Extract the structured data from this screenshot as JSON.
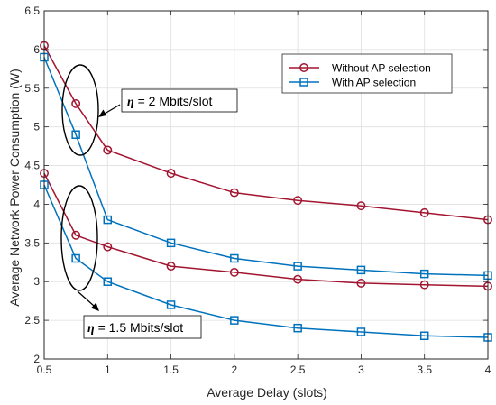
{
  "chart_data": {
    "type": "line",
    "xlabel": "Average Delay (slots)",
    "ylabel": "Average Network Power Consumption (W)",
    "xlim": [
      0.5,
      4
    ],
    "ylim": [
      2,
      6.5
    ],
    "xticks": [
      0.5,
      1,
      1.5,
      2,
      2.5,
      3,
      3.5,
      4
    ],
    "xtick_labels": [
      "0.5",
      "1",
      "1.5",
      "2",
      "2.5",
      "3",
      "3.5",
      "4"
    ],
    "yticks": [
      2,
      2.5,
      3,
      3.5,
      4,
      4.5,
      5,
      5.5,
      6,
      6.5
    ],
    "ytick_labels": [
      "2",
      "2.5",
      "3",
      "3.5",
      "4",
      "4.5",
      "5",
      "5.5",
      "6",
      "6.5"
    ],
    "grid": true,
    "legend_position": "top-right",
    "legend": [
      {
        "label": "Without AP selection",
        "color": "#A2142F",
        "marker": "circle"
      },
      {
        "label": "With AP selection",
        "color": "#0072BD",
        "marker": "square"
      }
    ],
    "series": [
      {
        "group": "eta2",
        "legend_index": 0,
        "color": "#A2142F",
        "marker": "circle",
        "x": [
          0.5,
          0.75,
          1,
          1.5,
          2,
          2.5,
          3,
          3.5,
          4
        ],
        "y": [
          6.05,
          5.3,
          4.7,
          4.4,
          4.15,
          4.05,
          3.98,
          3.89,
          3.8
        ]
      },
      {
        "group": "eta2",
        "legend_index": 1,
        "color": "#0072BD",
        "marker": "square",
        "x": [
          0.5,
          0.75,
          1,
          1.5,
          2,
          2.5,
          3,
          3.5,
          4
        ],
        "y": [
          5.9,
          4.9,
          3.8,
          3.5,
          3.3,
          3.2,
          3.15,
          3.1,
          3.08
        ]
      },
      {
        "group": "eta1.5",
        "legend_index": 0,
        "color": "#A2142F",
        "marker": "circle",
        "x": [
          0.5,
          0.75,
          1,
          1.5,
          2,
          2.5,
          3,
          3.5,
          4
        ],
        "y": [
          4.4,
          3.6,
          3.45,
          3.2,
          3.12,
          3.03,
          2.98,
          2.96,
          2.94
        ]
      },
      {
        "group": "eta1.5",
        "legend_index": 1,
        "color": "#0072BD",
        "marker": "square",
        "x": [
          0.5,
          0.75,
          1,
          1.5,
          2,
          2.5,
          3,
          3.5,
          4
        ],
        "y": [
          4.25,
          3.3,
          3.0,
          2.7,
          2.5,
          2.4,
          2.35,
          2.3,
          2.28
        ]
      }
    ],
    "annotations": [
      {
        "symbol": "η",
        "text": " = 2 Mbits/slot"
      },
      {
        "symbol": "η",
        "text": " = 1.5 Mbits/slot"
      }
    ]
  }
}
